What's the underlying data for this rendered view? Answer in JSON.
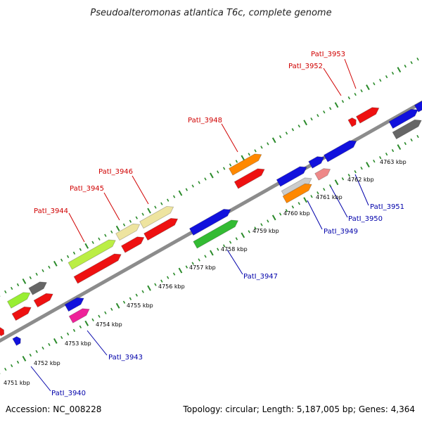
{
  "title": "Pseudoalteromonas atlantica T6c, complete genome",
  "footer": {
    "accession": "Accession: NC_008228",
    "summary": "Topology: circular; Length: 5,187,005 bp; Genes: 4,364"
  },
  "colors": {
    "backbone": "#8c8c8c",
    "tick": "#2a8a2a",
    "top_label": "#d00000",
    "bottom_label": "#0000aa"
  },
  "kbp_labels": [
    "4751 kbp",
    "4752 kbp",
    "4753 kbp",
    "4754 kbp",
    "4755 kbp",
    "4756 kbp",
    "4757 kbp",
    "4758 kbp",
    "4759 kbp",
    "4760 kbp",
    "4761 kbp",
    "4762 kbp",
    "4763 kbp"
  ],
  "top_gene_labels": [
    "PatI_3944",
    "PatI_3945",
    "PatI_3946",
    "PatI_3948",
    "PatI_3952",
    "PatI_3953"
  ],
  "bottom_gene_labels": [
    "PatI_3940",
    "PatI_3943",
    "PatI_3947",
    "PatI_3949",
    "PatI_3950",
    "PatI_3951"
  ]
}
